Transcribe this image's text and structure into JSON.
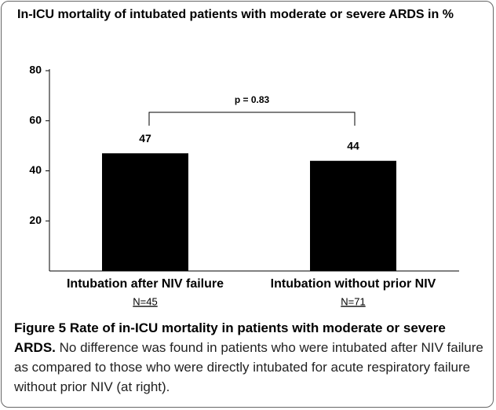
{
  "chart_data": {
    "type": "bar",
    "title": "In-ICU mortality of intubated patients with moderate or severe ARDS in %",
    "categories": [
      "Intubation after NIV failure",
      "Intubation without prior NIV"
    ],
    "sample_sizes": [
      "N=45",
      "N=71"
    ],
    "values": [
      47,
      44
    ],
    "color": "#000000",
    "ylim": [
      0,
      80
    ],
    "yticks": [
      20,
      40,
      60,
      80
    ],
    "annotation": "p = 0.83"
  },
  "caption": {
    "label": "Figure 5",
    "title": "Rate of in-ICU mortality in patients with moderate or severe ARDS.",
    "text": "No difference was found in patients who were intubated after NIV failure as compared to those who were directly intubated for acute respiratory failure without prior NIV (at right)."
  }
}
